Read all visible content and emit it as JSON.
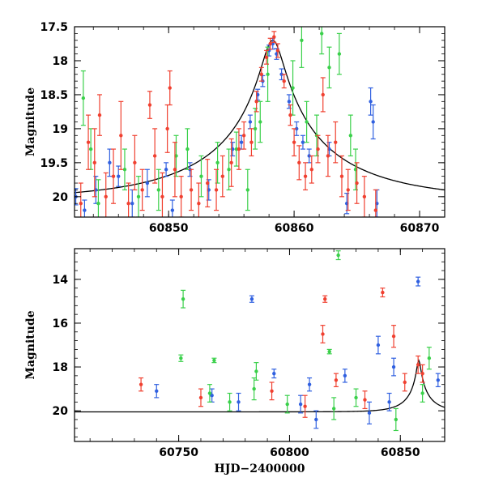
{
  "chart_data": [
    {
      "type": "scatter",
      "panel": "top",
      "xlim": [
        60842.5,
        60872
      ],
      "ylim": [
        20.3,
        17.5
      ],
      "y_inverted": true,
      "ylabel": "Magnitude",
      "xlabel": "",
      "x_ticks": [
        60850,
        60860,
        60870
      ],
      "x_tick_labels": [
        "60850",
        "60860",
        "60870"
      ],
      "y_ticks": [
        17.5,
        18,
        18.5,
        19,
        19.5,
        20
      ],
      "y_tick_labels": [
        "17.5",
        "18",
        "18.5",
        "19",
        "19.5",
        "20"
      ],
      "grid": false,
      "legend": "none",
      "model_curve": {
        "color": "#000000",
        "peak_x": 60858.3,
        "peak_y": 17.7,
        "baseline": 20.05,
        "u0": 0.07,
        "tE": 12
      },
      "series": [
        {
          "color": "#3060e0",
          "points": [
            [
              60842.6,
              20.0,
              0.12
            ],
            [
              60843.3,
              20.2,
              0.15
            ],
            [
              60844.2,
              19.9,
              0.2
            ],
            [
              60845.3,
              19.5,
              0.2
            ],
            [
              60846.0,
              19.7,
              0.15
            ],
            [
              60847.1,
              20.1,
              0.2
            ],
            [
              60848.3,
              19.8,
              0.2
            ],
            [
              60849.8,
              19.6,
              0.1
            ],
            [
              60850.3,
              20.2,
              0.15
            ],
            [
              60851.7,
              19.6,
              0.1
            ],
            [
              60853.2,
              19.9,
              0.15
            ],
            [
              60855.1,
              19.3,
              0.1
            ],
            [
              60855.8,
              19.2,
              0.1
            ],
            [
              60856.5,
              18.9,
              0.1
            ],
            [
              60857.1,
              18.5,
              0.08
            ],
            [
              60857.5,
              18.3,
              0.08
            ],
            [
              60858.0,
              17.85,
              0.08
            ],
            [
              60858.3,
              17.75,
              0.08
            ],
            [
              60858.6,
              17.9,
              0.08
            ],
            [
              60859.0,
              18.2,
              0.08
            ],
            [
              60859.6,
              18.6,
              0.1
            ],
            [
              60860.2,
              19.0,
              0.1
            ],
            [
              60860.7,
              19.2,
              0.1
            ],
            [
              60861.2,
              19.4,
              0.1
            ],
            [
              60862.8,
              19.3,
              0.1
            ],
            [
              60864.2,
              20.1,
              0.15
            ],
            [
              60866.1,
              18.6,
              0.2
            ],
            [
              60866.3,
              18.9,
              0.25
            ],
            [
              60866.6,
              20.1,
              0.2
            ]
          ]
        },
        {
          "color": "#3ad04a",
          "points": [
            [
              60843.2,
              18.55,
              0.4
            ],
            [
              60843.8,
              19.3,
              0.3
            ],
            [
              60844.4,
              20.1,
              0.35
            ],
            [
              60846.5,
              19.6,
              0.3
            ],
            [
              60847.6,
              20.0,
              0.3
            ],
            [
              60849.2,
              19.9,
              0.3
            ],
            [
              60850.6,
              19.4,
              0.3
            ],
            [
              60851.5,
              19.3,
              0.3
            ],
            [
              60852.6,
              19.7,
              0.3
            ],
            [
              60853.9,
              19.5,
              0.3
            ],
            [
              60854.8,
              19.6,
              0.3
            ],
            [
              60855.4,
              19.3,
              0.25
            ],
            [
              60856.3,
              19.9,
              0.3
            ],
            [
              60856.9,
              19.0,
              0.3
            ],
            [
              60857.3,
              18.9,
              0.3
            ],
            [
              60857.9,
              18.2,
              0.4
            ],
            [
              60859.9,
              18.4,
              0.4
            ],
            [
              60860.6,
              17.7,
              0.4
            ],
            [
              60861.0,
              18.9,
              0.3
            ],
            [
              60861.8,
              19.1,
              0.3
            ],
            [
              60862.2,
              17.6,
              0.3
            ],
            [
              60862.8,
              18.1,
              0.3
            ],
            [
              60863.6,
              17.9,
              0.3
            ],
            [
              60864.5,
              19.1,
              0.3
            ],
            [
              60864.9,
              19.6,
              0.3
            ]
          ]
        },
        {
          "color": "#f04030",
          "points": [
            [
              60843.0,
              20.1,
              0.3
            ],
            [
              60843.6,
              19.2,
              0.4
            ],
            [
              60844.1,
              19.5,
              0.5
            ],
            [
              60844.5,
              18.8,
              0.3
            ],
            [
              60845.0,
              20.0,
              0.35
            ],
            [
              60845.6,
              19.7,
              0.4
            ],
            [
              60846.2,
              19.1,
              0.5
            ],
            [
              60846.8,
              20.1,
              0.3
            ],
            [
              60847.3,
              19.5,
              0.4
            ],
            [
              60847.9,
              19.9,
              0.3
            ],
            [
              60848.5,
              18.65,
              0.2
            ],
            [
              60848.9,
              19.4,
              0.4
            ],
            [
              60849.5,
              20.0,
              0.35
            ],
            [
              60849.9,
              19.0,
              0.35
            ],
            [
              60850.1,
              18.4,
              0.25
            ],
            [
              60850.5,
              19.6,
              0.4
            ],
            [
              60851.0,
              20.0,
              0.3
            ],
            [
              60851.8,
              19.9,
              0.3
            ],
            [
              60852.4,
              20.1,
              0.3
            ],
            [
              60853.1,
              19.8,
              0.35
            ],
            [
              60853.8,
              19.9,
              0.3
            ],
            [
              60854.3,
              19.7,
              0.3
            ],
            [
              60855.0,
              19.5,
              0.35
            ],
            [
              60855.6,
              19.3,
              0.3
            ],
            [
              60856.0,
              19.1,
              0.2
            ],
            [
              60856.6,
              19.2,
              0.2
            ],
            [
              60857.0,
              18.6,
              0.15
            ],
            [
              60857.4,
              18.2,
              0.1
            ],
            [
              60857.8,
              17.95,
              0.1
            ],
            [
              60858.1,
              17.75,
              0.08
            ],
            [
              60858.4,
              17.65,
              0.08
            ],
            [
              60858.7,
              17.85,
              0.1
            ],
            [
              60859.2,
              18.3,
              0.1
            ],
            [
              60859.7,
              18.8,
              0.15
            ],
            [
              60860.0,
              19.2,
              0.2
            ],
            [
              60860.4,
              19.5,
              0.25
            ],
            [
              60860.9,
              19.7,
              0.2
            ],
            [
              60861.4,
              19.6,
              0.2
            ],
            [
              60861.9,
              19.3,
              0.2
            ],
            [
              60862.3,
              18.5,
              0.25
            ],
            [
              60862.7,
              19.4,
              0.3
            ],
            [
              60863.3,
              19.2,
              0.3
            ],
            [
              60863.8,
              19.7,
              0.3
            ],
            [
              60864.3,
              19.9,
              0.3
            ],
            [
              60865.0,
              19.8,
              0.3
            ],
            [
              60865.6,
              20.0,
              0.3
            ],
            [
              60866.5,
              20.2,
              0.3
            ]
          ]
        }
      ]
    },
    {
      "type": "scatter",
      "panel": "bottom",
      "xlim": [
        60703,
        60870
      ],
      "ylim": [
        21.4,
        12.6
      ],
      "y_inverted": true,
      "ylabel": "Magnitude",
      "xlabel": "HJD−2400000",
      "x_ticks": [
        60750,
        60800,
        60850
      ],
      "x_tick_labels": [
        "60750",
        "60800",
        "60850"
      ],
      "y_ticks": [
        14,
        16,
        18,
        20
      ],
      "y_tick_labels": [
        "14",
        "16",
        "18",
        "20"
      ],
      "grid": false,
      "legend": "none",
      "model_curve": {
        "color": "#000000",
        "peak_x": 60858.3,
        "peak_y": 17.7,
        "baseline": 20.05,
        "u0": 0.07,
        "tE": 12
      },
      "series": [
        {
          "color": "#3060e0",
          "points": [
            [
              60783,
              14.9,
              0.15
            ],
            [
              60840,
              17.0,
              0.4
            ],
            [
              60858,
              14.1,
              0.2
            ],
            [
              60793,
              18.3,
              0.2
            ],
            [
              60809,
              18.8,
              0.3
            ],
            [
              60825,
              18.4,
              0.3
            ],
            [
              60847,
              18.0,
              0.4
            ],
            [
              60867,
              18.6,
              0.3
            ],
            [
              60740,
              19.1,
              0.3
            ],
            [
              60765,
              19.3,
              0.3
            ],
            [
              60777,
              19.6,
              0.4
            ],
            [
              60805,
              19.7,
              0.4
            ],
            [
              60812,
              20.4,
              0.4
            ],
            [
              60836,
              20.1,
              0.5
            ],
            [
              60845,
              19.6,
              0.4
            ]
          ]
        },
        {
          "color": "#3ad04a",
          "points": [
            [
              60752,
              14.9,
              0.4
            ],
            [
              60751,
              17.6,
              0.15
            ],
            [
              60766,
              17.7,
              0.1
            ],
            [
              60785,
              18.2,
              0.4
            ],
            [
              60822,
              12.9,
              0.2
            ],
            [
              60818,
              17.3,
              0.1
            ],
            [
              60863,
              17.6,
              0.5
            ],
            [
              60764,
              19.2,
              0.4
            ],
            [
              60773,
              19.6,
              0.4
            ],
            [
              60784,
              19.0,
              0.5
            ],
            [
              60799,
              19.7,
              0.4
            ],
            [
              60820,
              19.9,
              0.5
            ],
            [
              60830,
              19.4,
              0.4
            ],
            [
              60848,
              20.4,
              0.5
            ],
            [
              60860,
              19.2,
              0.4
            ]
          ]
        },
        {
          "color": "#f04030",
          "points": [
            [
              60816,
              14.9,
              0.15
            ],
            [
              60842,
              14.6,
              0.2
            ],
            [
              60815,
              16.5,
              0.4
            ],
            [
              60847,
              16.6,
              0.5
            ],
            [
              60821,
              18.6,
              0.3
            ],
            [
              60852,
              18.7,
              0.4
            ],
            [
              60858,
              17.9,
              0.4
            ],
            [
              60860,
              18.3,
              0.4
            ],
            [
              60733,
              18.8,
              0.3
            ],
            [
              60760,
              19.4,
              0.4
            ],
            [
              60792,
              19.1,
              0.4
            ],
            [
              60807,
              19.8,
              0.5
            ],
            [
              60834,
              19.5,
              0.4
            ]
          ]
        }
      ]
    }
  ]
}
